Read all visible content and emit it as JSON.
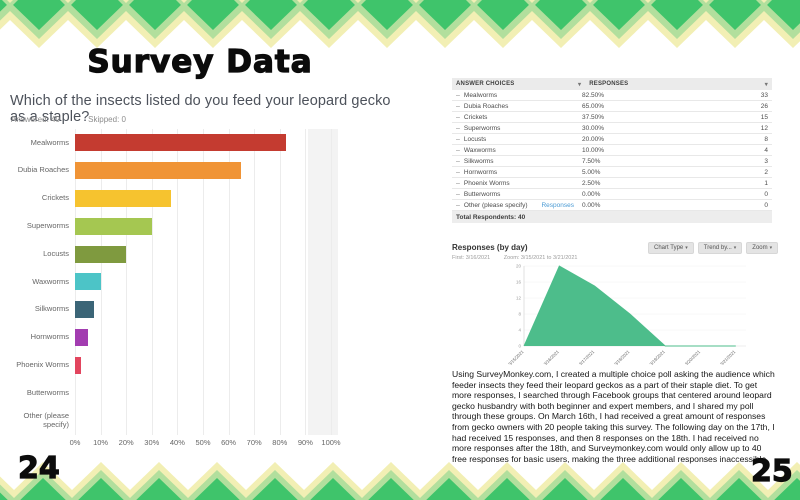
{
  "page_left": {
    "page_number": "24",
    "title": "Survey Data",
    "question": "Which of the insects listed do you feed your leopard gecko as a staple?",
    "answered": "Answered: 40",
    "skipped": "Skipped: 0"
  },
  "page_right": {
    "page_number": "25",
    "table": {
      "col_answer": "ANSWER CHOICES",
      "col_responses": "RESPONSES",
      "rows": [
        {
          "label": "Mealworms",
          "percent": "82.50%",
          "count": "33"
        },
        {
          "label": "Dubia Roaches",
          "percent": "65.00%",
          "count": "26"
        },
        {
          "label": "Crickets",
          "percent": "37.50%",
          "count": "15"
        },
        {
          "label": "Superworms",
          "percent": "30.00%",
          "count": "12"
        },
        {
          "label": "Locusts",
          "percent": "20.00%",
          "count": "8"
        },
        {
          "label": "Waxworms",
          "percent": "10.00%",
          "count": "4"
        },
        {
          "label": "Silkworms",
          "percent": "7.50%",
          "count": "3"
        },
        {
          "label": "Hornworms",
          "percent": "5.00%",
          "count": "2"
        },
        {
          "label": "Phoenix Worms",
          "percent": "2.50%",
          "count": "1"
        },
        {
          "label": "Butterworms",
          "percent": "0.00%",
          "count": "0"
        },
        {
          "label": "Other (please specify)",
          "percent": "0.00%",
          "count": "0",
          "link": "Responses"
        }
      ],
      "footer": "Total Respondents: 40"
    },
    "trend": {
      "title": "Responses (by day)",
      "first_label": "First: 3/16/2021",
      "zoom_label": "Zoom: 3/15/2021 to 3/21/2021",
      "buttons": [
        "Chart Type",
        "Trend by...",
        "Zoom"
      ]
    },
    "paragraph": "Using SurveyMonkey.com, I created a multiple choice poll asking the audience which feeder insects they feed their leopard geckos as a part of their staple diet. To get more responses, I searched through Facebook groups that centered around leopard gecko husbandry with both beginner and expert members, and I shared my poll through these groups. On March 16th, I had received a great amount of responses from gecko owners with 20 people taking this survey. The following day on the 17th, I had received 15 responses, and then 8 responses on the 18th. I had received no more responses after the 18th, and Surveymonkey.com would only allow up to 40 free responses for basic users, making the three additional responses inaccessible."
  },
  "chart_data": [
    {
      "type": "bar",
      "orientation": "horizontal",
      "title": "Which of the insects listed do you feed your leopard gecko as a staple?",
      "categories": [
        "Mealworms",
        "Dubia Roaches",
        "Crickets",
        "Superworms",
        "Locusts",
        "Waxworms",
        "Silkworms",
        "Hornworms",
        "Phoenix Worms",
        "Butterworms",
        "Other (please specify)"
      ],
      "values": [
        82.5,
        65,
        37.5,
        30,
        20,
        10,
        7.5,
        5,
        2.5,
        0,
        0
      ],
      "colors": [
        "#c43b30",
        "#f09436",
        "#f6c32f",
        "#a5c751",
        "#7f9a3f",
        "#4cc4c7",
        "#3b6577",
        "#a23cb0",
        "#e2455e",
        "#b9b9b9",
        "#b9b9b9"
      ],
      "xlim": [
        0,
        100
      ],
      "x_ticks": [
        "0%",
        "10%",
        "20%",
        "30%",
        "40%",
        "50%",
        "60%",
        "70%",
        "80%",
        "90%",
        "100%"
      ],
      "grid": "vertical",
      "legend": "none"
    },
    {
      "type": "area",
      "title": "Responses (by day)",
      "x": [
        "3/15/2021",
        "3/16/2021",
        "3/17/2021",
        "3/18/2021",
        "3/19/2021",
        "3/20/2021",
        "3/21/2021"
      ],
      "values": [
        0,
        20,
        15,
        8,
        0,
        0,
        0
      ],
      "ylim": [
        0,
        20
      ],
      "y_ticks": [
        0,
        4,
        8,
        12,
        16,
        20
      ],
      "color": "#4dbd8b",
      "grid": "horizontal",
      "legend": "none"
    }
  ],
  "theme": {
    "border_dark_green": "#3fc46b",
    "border_light_green": "#b2df9d",
    "border_pale_yellow": "#f2efb4",
    "link_blue": "#4a9ad4"
  }
}
